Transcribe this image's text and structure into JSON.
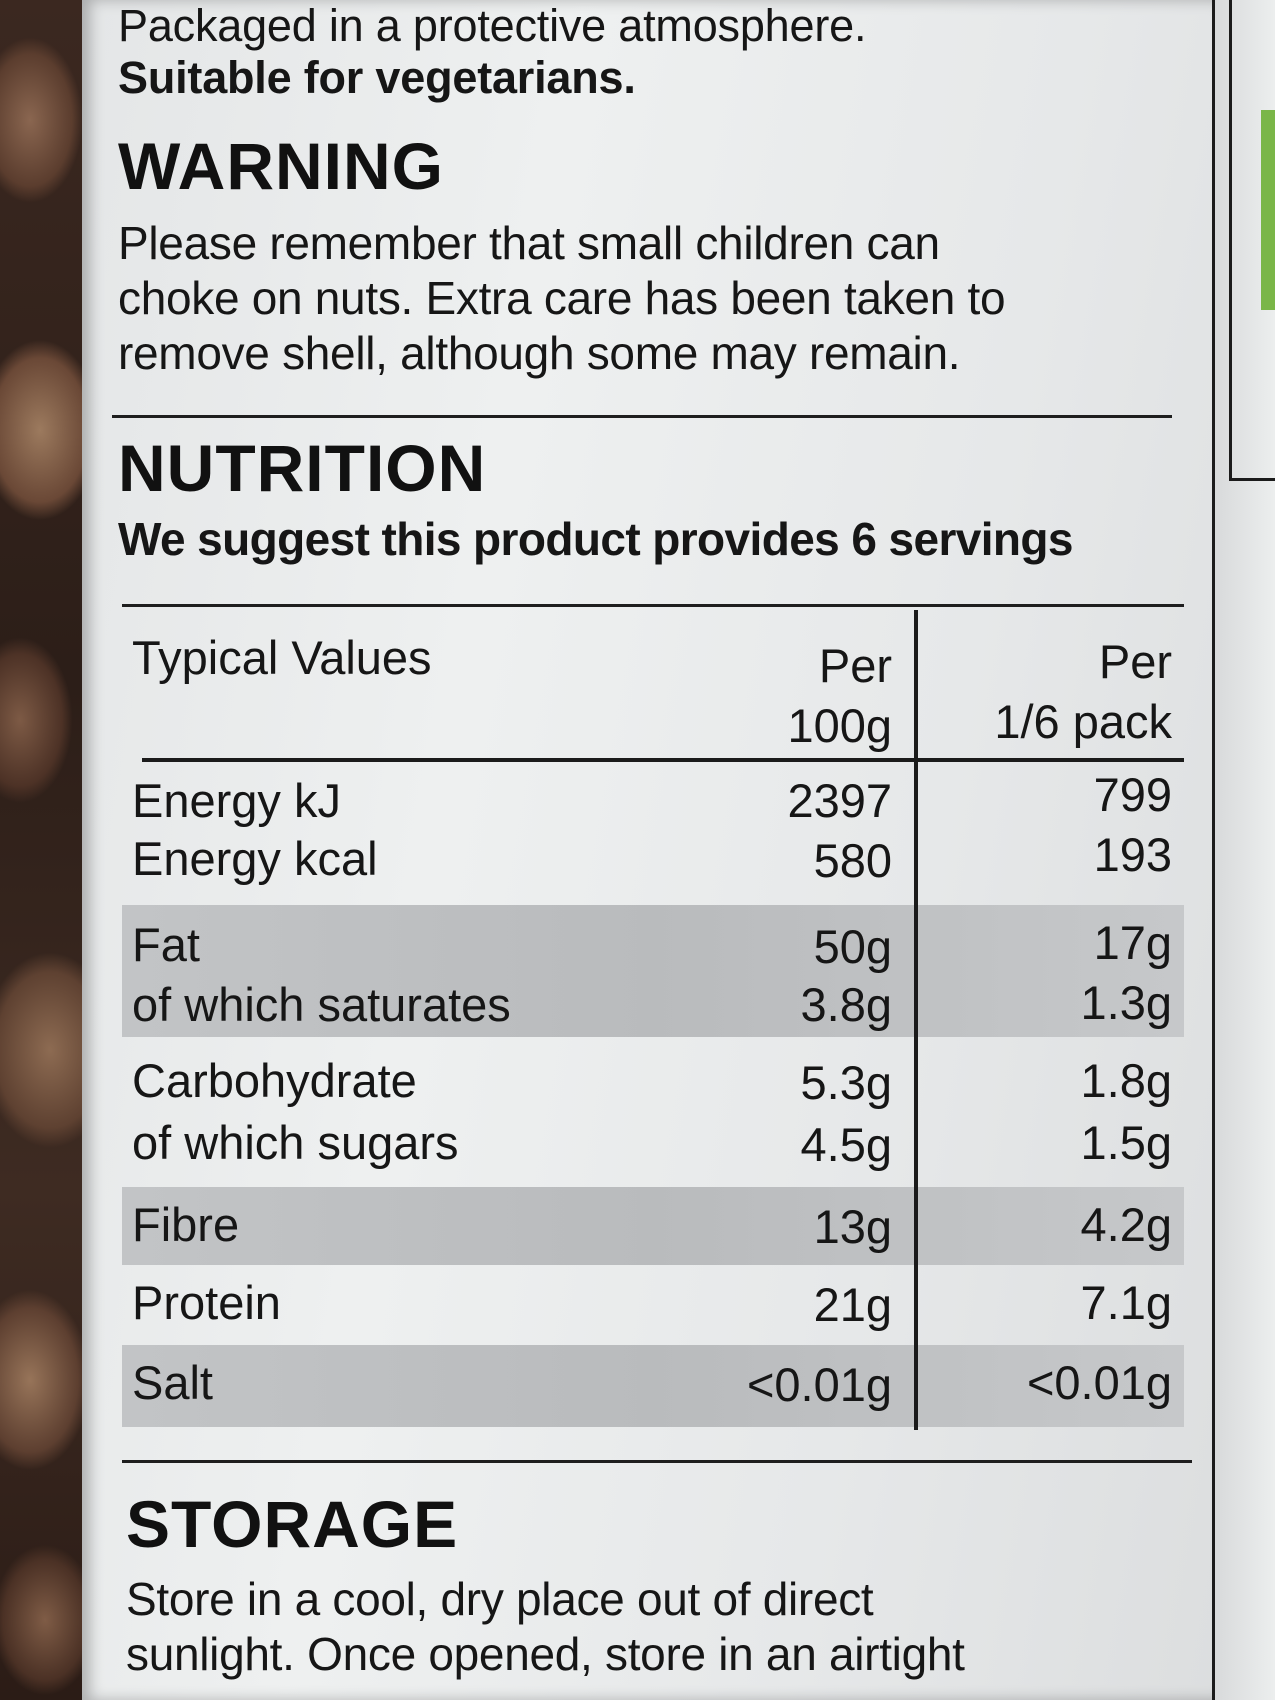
{
  "intro": {
    "line1": "Packaged in a protective atmosphere.",
    "line2": "Suitable for vegetarians."
  },
  "warning": {
    "heading": "WARNING",
    "lines": [
      "Please remember that small children can",
      "choke on nuts. Extra care has been taken to",
      "remove shell, although some may remain."
    ]
  },
  "nutrition": {
    "heading": "NUTRITION",
    "suggestion": "We suggest this product provides 6 servings",
    "header": {
      "label": "Typical Values",
      "col1_line1": "Per",
      "col1_line2": "100g",
      "col2_line1": "Per",
      "col2_line2": "1/6 pack"
    },
    "rows": [
      {
        "label": "Energy kJ",
        "per100g": "2397",
        "perServing": "799"
      },
      {
        "label": "Energy kcal",
        "per100g": "580",
        "perServing": "193"
      },
      {
        "label": "Fat",
        "per100g": "50g",
        "perServing": "17g"
      },
      {
        "label": "of which saturates",
        "per100g": "3.8g",
        "perServing": "1.3g"
      },
      {
        "label": "Carbohydrate",
        "per100g": "5.3g",
        "perServing": "1.8g"
      },
      {
        "label": "of which sugars",
        "per100g": "4.5g",
        "perServing": "1.5g"
      },
      {
        "label": "Fibre",
        "per100g": "13g",
        "perServing": "4.2g"
      },
      {
        "label": "Protein",
        "per100g": "21g",
        "perServing": "7.1g"
      },
      {
        "label": "Salt",
        "per100g": "<0.01g",
        "perServing": "<0.01g"
      }
    ]
  },
  "storage": {
    "heading": "STORAGE",
    "lines": [
      "Store in a cool, dry place out of direct",
      "sunlight. Once opened, store in an airtight"
    ]
  },
  "colors": {
    "label_background": "#e8eaeb",
    "shaded_row": "#bfc1c3",
    "text": "#161616"
  }
}
